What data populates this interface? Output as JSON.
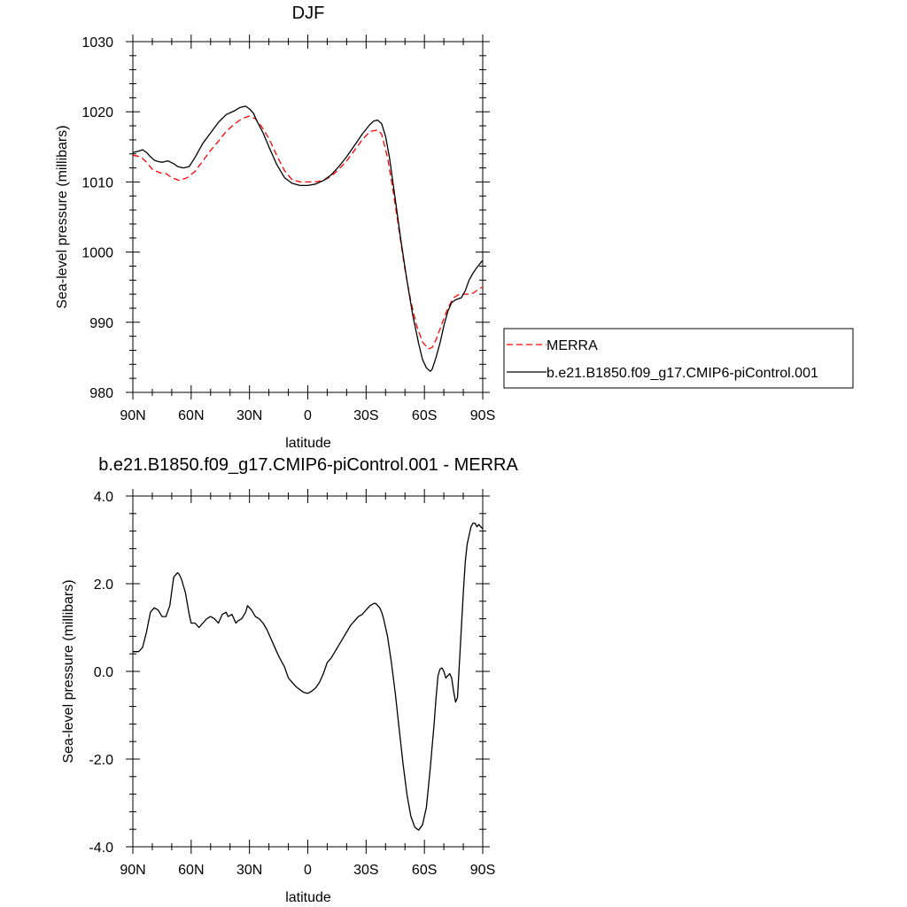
{
  "chart_data": [
    {
      "type": "line",
      "title": "DJF",
      "xlabel": "latitude",
      "ylabel": "Sea-level pressure (millibars)",
      "xlim": [
        90,
        -90
      ],
      "ylim": [
        980,
        1030
      ],
      "x_ticks": [
        {
          "value": 90,
          "label": "90N"
        },
        {
          "value": 60,
          "label": "60N"
        },
        {
          "value": 30,
          "label": "30N"
        },
        {
          "value": 0,
          "label": "0"
        },
        {
          "value": -30,
          "label": "30S"
        },
        {
          "value": -60,
          "label": "60S"
        },
        {
          "value": -90,
          "label": "90S"
        }
      ],
      "y_ticks": [
        {
          "value": 980,
          "label": "980"
        },
        {
          "value": 990,
          "label": "990"
        },
        {
          "value": 1000,
          "label": "1000"
        },
        {
          "value": 1010,
          "label": "1010"
        },
        {
          "value": 1020,
          "label": "1020"
        },
        {
          "value": 1030,
          "label": "1030"
        }
      ],
      "legend_position": "right",
      "series": [
        {
          "name": "MERRA",
          "color": "#ff0000",
          "dash": "dashed",
          "x": [
            90,
            86,
            83,
            80,
            76,
            73,
            70,
            66,
            62,
            58,
            54,
            50,
            46,
            42,
            38,
            34,
            30,
            27,
            24,
            20,
            16,
            12,
            8,
            4,
            0,
            -4,
            -8,
            -12,
            -16,
            -20,
            -24,
            -28,
            -32,
            -36,
            -38,
            -41,
            -44,
            -47,
            -50,
            -53,
            -56,
            -59,
            -62,
            -64,
            -66,
            -68,
            -70,
            -72,
            -75,
            -78,
            -80,
            -82,
            -84,
            -86,
            -88,
            -90
          ],
          "y": [
            1013.8,
            1013.6,
            1012.8,
            1011.8,
            1011.3,
            1011.2,
            1010.6,
            1010.2,
            1010.6,
            1011.5,
            1013.0,
            1014.5,
            1015.8,
            1017.2,
            1018.2,
            1019.0,
            1019.4,
            1019.0,
            1018.0,
            1016.2,
            1013.8,
            1011.6,
            1010.3,
            1010.0,
            1010.0,
            1010.0,
            1010.2,
            1010.8,
            1011.8,
            1013.0,
            1014.5,
            1016.0,
            1017.2,
            1017.4,
            1016.8,
            1013.5,
            1008.5,
            1003.0,
            997.5,
            993.0,
            989.5,
            987.2,
            986.2,
            986.4,
            987.5,
            989.0,
            990.5,
            992.0,
            993.5,
            994.0,
            994.0,
            994.0,
            994.0,
            994.3,
            994.8,
            995.0
          ]
        },
        {
          "name": "b.e21.B1850.f09_g17.CMIP6-piControl.001",
          "color": "#000000",
          "dash": "solid",
          "x": [
            90,
            87,
            85,
            83,
            81,
            79,
            77,
            75,
            72,
            69,
            67,
            64,
            61,
            58,
            54,
            50,
            46,
            42,
            38,
            35,
            32,
            30,
            28,
            26,
            23,
            20,
            16,
            12,
            8,
            4,
            0,
            -4,
            -8,
            -12,
            -16,
            -20,
            -24,
            -28,
            -32,
            -34,
            -36,
            -38,
            -40,
            -42,
            -45,
            -48,
            -51,
            -54,
            -57,
            -59,
            -61,
            -63,
            -64,
            -66,
            -68,
            -70,
            -72,
            -74,
            -76,
            -79,
            -81,
            -83,
            -85,
            -87,
            -89,
            -90
          ],
          "y": [
            1014.2,
            1014.4,
            1014.6,
            1014.2,
            1013.6,
            1013.1,
            1012.9,
            1012.8,
            1013.0,
            1012.6,
            1012.2,
            1012.0,
            1012.2,
            1013.5,
            1015.5,
            1017.0,
            1018.5,
            1019.6,
            1020.1,
            1020.6,
            1020.8,
            1020.4,
            1019.8,
            1018.6,
            1017.0,
            1015.0,
            1012.5,
            1010.6,
            1009.8,
            1009.5,
            1009.5,
            1009.7,
            1010.2,
            1011.0,
            1012.2,
            1013.6,
            1015.2,
            1016.8,
            1018.2,
            1018.7,
            1018.8,
            1018.3,
            1016.5,
            1013.5,
            1007.5,
            1001.5,
            996.0,
            991.0,
            987.0,
            984.7,
            983.5,
            983.0,
            983.3,
            985.0,
            987.0,
            989.5,
            991.5,
            992.8,
            993.2,
            993.5,
            994.5,
            996.0,
            997.0,
            997.8,
            998.5,
            998.8
          ]
        }
      ]
    },
    {
      "type": "line",
      "title": "b.e21.B1850.f09_g17.CMIP6-piControl.001 - MERRA",
      "xlabel": "latitude",
      "ylabel": "Sea-level pressure (millibars)",
      "xlim": [
        90,
        -90
      ],
      "ylim": [
        -4,
        4
      ],
      "x_ticks": [
        {
          "value": 90,
          "label": "90N"
        },
        {
          "value": 60,
          "label": "60N"
        },
        {
          "value": 30,
          "label": "30N"
        },
        {
          "value": 0,
          "label": "0"
        },
        {
          "value": -30,
          "label": "30S"
        },
        {
          "value": -60,
          "label": "60S"
        },
        {
          "value": -90,
          "label": "90S"
        }
      ],
      "y_ticks": [
        {
          "value": -4,
          "label": "-4.0"
        },
        {
          "value": -2,
          "label": "-2.0"
        },
        {
          "value": 0,
          "label": "0.0"
        },
        {
          "value": 2,
          "label": "2.0"
        },
        {
          "value": 4,
          "label": "4.0"
        }
      ],
      "series": [
        {
          "name": "",
          "color": "#000000",
          "dash": "solid",
          "x": [
            90,
            87,
            85,
            83,
            81,
            79,
            77,
            75,
            73,
            71,
            69,
            67,
            66,
            65,
            63,
            61,
            60,
            58,
            56,
            54,
            52,
            50,
            48,
            46,
            44,
            42,
            41,
            39,
            37,
            36,
            34,
            32,
            31,
            29,
            27,
            25,
            23,
            21,
            19,
            17,
            15,
            12,
            10,
            8,
            6,
            4,
            2,
            0,
            -2,
            -4,
            -6,
            -8,
            -10,
            -12,
            -14,
            -16,
            -18,
            -20,
            -22,
            -24,
            -26,
            -28,
            -30,
            -32,
            -34,
            -35,
            -36,
            -37,
            -38,
            -39,
            -41,
            -43,
            -45,
            -47,
            -49,
            -51,
            -53,
            -55,
            -57,
            -59,
            -61,
            -63,
            -65,
            -66,
            -67,
            -68,
            -69,
            -70,
            -71,
            -72,
            -73,
            -74,
            -75,
            -76,
            -77,
            -78,
            -79,
            -80,
            -81,
            -82,
            -83,
            -84,
            -85,
            -86,
            -87,
            -88,
            -89,
            -90
          ],
          "y": [
            0.45,
            0.45,
            0.55,
            0.9,
            1.35,
            1.45,
            1.4,
            1.25,
            1.25,
            1.5,
            2.15,
            2.25,
            2.2,
            2.1,
            1.8,
            1.3,
            1.1,
            1.1,
            1.0,
            1.1,
            1.2,
            1.25,
            1.2,
            1.1,
            1.3,
            1.35,
            1.25,
            1.3,
            1.1,
            1.15,
            1.2,
            1.35,
            1.5,
            1.4,
            1.25,
            1.2,
            1.1,
            0.95,
            0.75,
            0.55,
            0.35,
            0.1,
            -0.15,
            -0.25,
            -0.35,
            -0.42,
            -0.48,
            -0.5,
            -0.45,
            -0.38,
            -0.25,
            -0.05,
            0.2,
            0.3,
            0.45,
            0.6,
            0.75,
            0.9,
            1.05,
            1.15,
            1.25,
            1.3,
            1.4,
            1.5,
            1.55,
            1.55,
            1.5,
            1.45,
            1.35,
            1.2,
            0.8,
            0.2,
            -0.5,
            -1.3,
            -2.1,
            -2.8,
            -3.3,
            -3.55,
            -3.62,
            -3.5,
            -3.1,
            -2.2,
            -1.2,
            -0.6,
            -0.1,
            0.05,
            0.08,
            0.0,
            -0.15,
            -0.1,
            -0.05,
            -0.15,
            -0.45,
            -0.7,
            -0.6,
            0.2,
            1.0,
            1.8,
            2.5,
            2.9,
            3.1,
            3.3,
            3.38,
            3.38,
            3.3,
            3.35,
            3.3,
            3.25
          ]
        }
      ]
    }
  ]
}
